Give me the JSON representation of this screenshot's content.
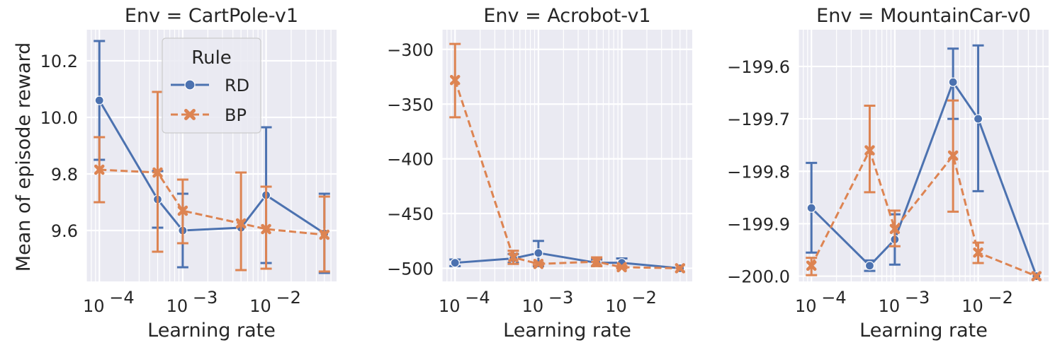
{
  "ylabel": "Mean of episode reward",
  "legend": {
    "title": "Rule",
    "placement": "upper-right of first panel",
    "entries": [
      {
        "name": "RD",
        "color": "#4c72b0",
        "marker": "circle",
        "dash": "solid"
      },
      {
        "name": "BP",
        "color": "#dd8452",
        "marker": "x",
        "dash": "dashed"
      }
    ]
  },
  "chart_data": [
    {
      "type": "line",
      "title": "Env = CartPole-v1",
      "xlabel": "Learning rate",
      "ylabel": "Mean of episode reward",
      "xscale": "log",
      "x": [
        0.0001,
        0.0005,
        0.001,
        0.005,
        0.01,
        0.05
      ],
      "xlim": [
        7e-05,
        0.07
      ],
      "ylim": [
        9.42,
        10.31
      ],
      "yticks": [
        9.6,
        9.8,
        10.0,
        10.2
      ],
      "ytick_labels": [
        "9.6",
        "9.8",
        "10.0",
        "10.2"
      ],
      "xtick_labels": [
        "10",
        "10",
        "10"
      ],
      "xtick_exponents": [
        "−4",
        "−3",
        "−2"
      ],
      "xtick_values": [
        0.0001,
        0.001,
        0.01
      ],
      "grid": true,
      "series": [
        {
          "name": "RD",
          "y": [
            10.06,
            9.71,
            9.6,
            9.61,
            9.725,
            9.59
          ],
          "yerr_low": [
            9.85,
            9.61,
            9.47,
            9.76,
            9.485,
            9.45
          ],
          "yerr_high": [
            10.27,
            9.81,
            9.73,
            9.76,
            9.965,
            9.73
          ]
        },
        {
          "name": "BP",
          "y": [
            9.815,
            9.805,
            9.67,
            9.625,
            9.605,
            9.585
          ],
          "yerr_low": [
            9.7,
            9.525,
            9.555,
            9.46,
            9.465,
            9.455
          ],
          "yerr_high": [
            9.93,
            10.09,
            9.78,
            9.805,
            9.755,
            9.72
          ]
        }
      ]
    },
    {
      "type": "line",
      "title": "Env = Acrobot-v1",
      "xlabel": "Learning rate",
      "xscale": "log",
      "x": [
        0.0001,
        0.0005,
        0.001,
        0.005,
        0.01,
        0.05
      ],
      "xlim": [
        7e-05,
        0.07
      ],
      "ylim": [
        -512,
        -282
      ],
      "yticks": [
        -500,
        -450,
        -400,
        -350,
        -300
      ],
      "ytick_labels": [
        "−500",
        "−450",
        "−400",
        "−350",
        "−300"
      ],
      "xtick_labels": [
        "10",
        "10",
        "10"
      ],
      "xtick_exponents": [
        "−4",
        "−3",
        "−2"
      ],
      "xtick_values": [
        0.0001,
        0.001,
        0.01
      ],
      "grid": true,
      "series": [
        {
          "name": "RD",
          "y": [
            -495,
            -491,
            -486,
            -495,
            -495,
            -500
          ],
          "yerr_low": [
            -498,
            -495,
            -498,
            -498,
            -499,
            -500
          ],
          "yerr_high": [
            -492,
            -487,
            -475,
            -492,
            -491,
            -500
          ]
        },
        {
          "name": "BP",
          "y": [
            -328,
            -490,
            -496,
            -494,
            -499,
            -500
          ],
          "yerr_low": [
            -362,
            -496,
            -497,
            -498,
            -500,
            -500
          ],
          "yerr_high": [
            -295,
            -484,
            -495,
            -490,
            -498,
            -500
          ]
        }
      ]
    },
    {
      "type": "line",
      "title": "Env = MountainCar-v0",
      "xlabel": "Learning rate",
      "xscale": "log",
      "x": [
        0.0001,
        0.0005,
        0.001,
        0.005,
        0.01,
        0.05
      ],
      "xlim": [
        7e-05,
        0.07
      ],
      "ylim": [
        -200.01,
        -199.53
      ],
      "yticks": [
        -200.0,
        -199.9,
        -199.8,
        -199.7,
        -199.6
      ],
      "ytick_labels": [
        "−200.0",
        "−199.9",
        "−199.8",
        "−199.7",
        "−199.6"
      ],
      "xtick_labels": [
        "10",
        "10",
        "10"
      ],
      "xtick_exponents": [
        "−4",
        "−3",
        "−2"
      ],
      "xtick_values": [
        0.0001,
        0.001,
        0.01
      ],
      "grid": true,
      "series": [
        {
          "name": "RD",
          "y": [
            -199.87,
            -199.98,
            -199.93,
            -199.63,
            -199.7,
            -200.0
          ],
          "yerr_low": [
            -199.955,
            -199.99,
            -199.978,
            -199.7,
            -199.838,
            -200.0
          ],
          "yerr_high": [
            -199.784,
            -199.97,
            -199.882,
            -199.566,
            -199.56,
            -200.0
          ]
        },
        {
          "name": "BP",
          "y": [
            -199.98,
            -199.76,
            -199.91,
            -199.77,
            -199.955,
            -200.0
          ],
          "yerr_low": [
            -199.998,
            -199.84,
            -199.943,
            -199.877,
            -199.975,
            -200.0
          ],
          "yerr_high": [
            -199.965,
            -199.675,
            -199.875,
            -199.665,
            -199.936,
            -200.0
          ]
        }
      ]
    }
  ]
}
